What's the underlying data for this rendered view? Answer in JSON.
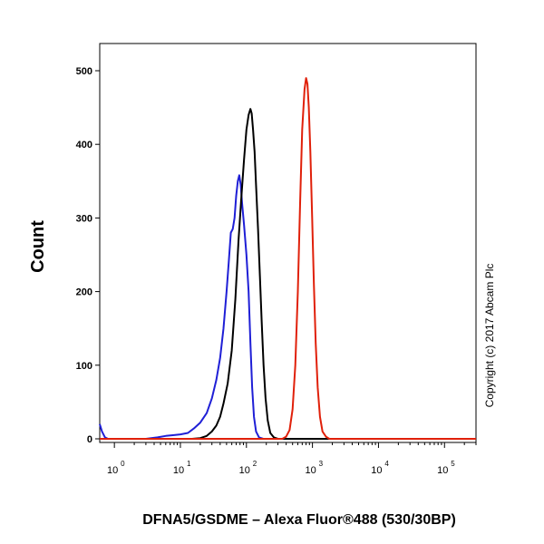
{
  "chart_data": {
    "type": "line",
    "title": "",
    "xlabel": "DFNA5/GSDME – Alexa Fluor®488 (530/30BP)",
    "ylabel": "Count",
    "x_scale": "log",
    "xlim": [
      0.6,
      300000
    ],
    "ylim": [
      0,
      520
    ],
    "x_ticks": [
      {
        "base": "10",
        "exp": "0",
        "value": 1
      },
      {
        "base": "10",
        "exp": "1",
        "value": 10
      },
      {
        "base": "10",
        "exp": "2",
        "value": 100
      },
      {
        "base": "10",
        "exp": "3",
        "value": 1000
      },
      {
        "base": "10",
        "exp": "4",
        "value": 10000
      },
      {
        "base": "10",
        "exp": "5",
        "value": 100000
      }
    ],
    "y_ticks": [
      "0",
      "100",
      "200",
      "300",
      "400",
      "500"
    ],
    "y_tick_values": [
      0,
      100,
      200,
      300,
      400,
      500
    ],
    "annotation": "Copyright (c) 2017 Abcam Plc",
    "grid": false,
    "series": [
      {
        "color": "#1f1fd6",
        "points": [
          [
            0.6,
            20
          ],
          [
            0.65,
            10
          ],
          [
            0.72,
            2
          ],
          [
            0.8,
            0
          ],
          [
            3,
            0
          ],
          [
            4.5,
            2
          ],
          [
            6,
            4
          ],
          [
            8,
            5
          ],
          [
            10,
            6
          ],
          [
            13,
            8
          ],
          [
            16,
            14
          ],
          [
            20,
            22
          ],
          [
            25,
            35
          ],
          [
            30,
            55
          ],
          [
            35,
            80
          ],
          [
            40,
            110
          ],
          [
            45,
            150
          ],
          [
            50,
            200
          ],
          [
            54,
            240
          ],
          [
            58,
            280
          ],
          [
            62,
            285
          ],
          [
            66,
            300
          ],
          [
            70,
            330
          ],
          [
            74,
            350
          ],
          [
            78,
            358
          ],
          [
            82,
            345
          ],
          [
            86,
            320
          ],
          [
            92,
            290
          ],
          [
            100,
            250
          ],
          [
            108,
            200
          ],
          [
            115,
            130
          ],
          [
            122,
            70
          ],
          [
            130,
            30
          ],
          [
            140,
            10
          ],
          [
            155,
            2
          ],
          [
            180,
            0
          ],
          [
            300000,
            0
          ]
        ]
      },
      {
        "color": "#000000",
        "points": [
          [
            0.6,
            0
          ],
          [
            15,
            0
          ],
          [
            20,
            1
          ],
          [
            25,
            4
          ],
          [
            30,
            10
          ],
          [
            35,
            18
          ],
          [
            40,
            30
          ],
          [
            45,
            48
          ],
          [
            52,
            75
          ],
          [
            60,
            120
          ],
          [
            68,
            190
          ],
          [
            76,
            270
          ],
          [
            84,
            330
          ],
          [
            92,
            380
          ],
          [
            100,
            420
          ],
          [
            108,
            440
          ],
          [
            115,
            448
          ],
          [
            120,
            442
          ],
          [
            126,
            420
          ],
          [
            133,
            390
          ],
          [
            140,
            345
          ],
          [
            150,
            285
          ],
          [
            160,
            220
          ],
          [
            170,
            160
          ],
          [
            182,
            100
          ],
          [
            195,
            55
          ],
          [
            210,
            25
          ],
          [
            230,
            8
          ],
          [
            260,
            2
          ],
          [
            300,
            0
          ],
          [
            300000,
            0
          ]
        ]
      },
      {
        "color": "#e0200a",
        "points": [
          [
            0.6,
            0
          ],
          [
            350,
            0
          ],
          [
            400,
            3
          ],
          [
            450,
            12
          ],
          [
            500,
            40
          ],
          [
            550,
            100
          ],
          [
            600,
            200
          ],
          [
            650,
            320
          ],
          [
            700,
            420
          ],
          [
            760,
            475
          ],
          [
            800,
            490
          ],
          [
            840,
            482
          ],
          [
            880,
            450
          ],
          [
            930,
            390
          ],
          [
            990,
            300
          ],
          [
            1050,
            210
          ],
          [
            1120,
            130
          ],
          [
            1200,
            70
          ],
          [
            1300,
            30
          ],
          [
            1420,
            10
          ],
          [
            1600,
            3
          ],
          [
            1800,
            0
          ],
          [
            300000,
            0
          ]
        ]
      }
    ]
  }
}
